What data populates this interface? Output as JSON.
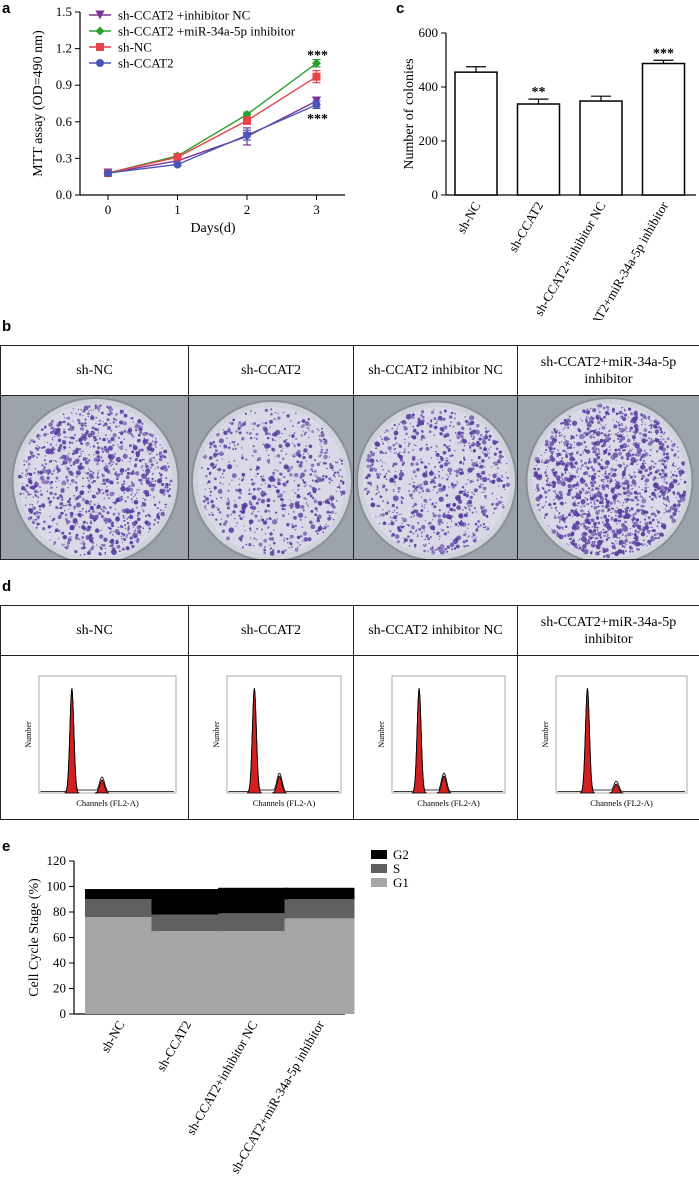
{
  "panel_letters": {
    "a": "a",
    "b": "b",
    "c": "c",
    "d": "d",
    "e": "e"
  },
  "colors": {
    "inhibitor_nc": "#7b3294",
    "mir_inhibitor": "#2ca02c",
    "sh_nc": "#e8424a",
    "sh_ccat2": "#4a55b8",
    "stain": "#5a3ea0",
    "peak": "#d21f1f",
    "g1": "#a6a6a6",
    "s": "#606060",
    "g2": "#000000"
  },
  "panel_b": {
    "headers": [
      "sh-NC",
      "sh-CCAT2",
      "sh-CCAT2 inhibitor NC",
      "sh-CCAT2+miR-34a-5p inhibitor"
    ]
  },
  "panel_d": {
    "headers": [
      "sh-NC",
      "sh-CCAT2",
      "sh-CCAT2 inhibitor NC",
      "sh-CCAT2+miR-34a-5p inhibitor"
    ],
    "xlabel": "Channels (FL2-A)",
    "ylabel": "Number"
  },
  "chart_data": [
    {
      "id": "a",
      "type": "line",
      "x": [
        0,
        1,
        2,
        3
      ],
      "xticks": [
        "0",
        "1",
        "2",
        "3"
      ],
      "yticks": [
        "0.0",
        "0.3",
        "0.6",
        "0.9",
        "1.2",
        "1.5"
      ],
      "xlabel": "Days(d)",
      "ylabel": "MTT assay (OD=490 nm)",
      "ylim": [
        0,
        1.5
      ],
      "legend_position": "top-left",
      "series": [
        {
          "name": "sh-CCAT2 +inhibitor NC",
          "marker": "triangle-down",
          "values": [
            0.18,
            0.28,
            0.48,
            0.77
          ],
          "errors": [
            0.01,
            0.02,
            0.07,
            0.03
          ]
        },
        {
          "name": "sh-CCAT2 +miR-34a-5p inhibitor",
          "marker": "diamond",
          "values": [
            0.18,
            0.32,
            0.66,
            1.08
          ],
          "errors": [
            0.01,
            0.02,
            0.02,
            0.03
          ]
        },
        {
          "name": "sh-NC",
          "marker": "square",
          "values": [
            0.18,
            0.31,
            0.61,
            0.97
          ],
          "errors": [
            0.01,
            0.02,
            0.03,
            0.05
          ]
        },
        {
          "name": "sh-CCAT2",
          "marker": "circle",
          "values": [
            0.18,
            0.25,
            0.49,
            0.74
          ],
          "errors": [
            0.01,
            0.01,
            0.04,
            0.03
          ]
        }
      ],
      "annotations": [
        {
          "text": "***",
          "x": 3,
          "y": 1.15
        },
        {
          "text": "***",
          "x": 3,
          "y": 0.63
        }
      ]
    },
    {
      "id": "c",
      "type": "bar",
      "categories": [
        "sh-NC",
        "sh-CCAT2",
        "sh-CCAT2+inhibitor NC",
        "sh-CCAT2+miR-34a-5p inhibitor"
      ],
      "values": [
        455,
        337,
        348,
        487
      ],
      "errors": [
        20,
        18,
        18,
        12
      ],
      "significance": [
        "",
        "**",
        "",
        "***"
      ],
      "ylabel": "Number of colonies",
      "yticks": [
        "0",
        "200",
        "400",
        "600"
      ],
      "ylim": [
        0,
        600
      ]
    },
    {
      "id": "e",
      "type": "bar",
      "stacked": true,
      "categories": [
        "sh-NC",
        "sh-CCAT2",
        "sh-CCAT2+inhibitor NC",
        "sh-CCAT2+miR-34a-5p inhibitor"
      ],
      "series": [
        {
          "name": "G1",
          "values": [
            76,
            65,
            65,
            75
          ]
        },
        {
          "name": "S",
          "values": [
            14,
            13,
            14,
            15
          ]
        },
        {
          "name": "G2",
          "values": [
            8,
            20,
            20,
            9
          ]
        }
      ],
      "legend_order": [
        "G2",
        "S",
        "G1"
      ],
      "ylabel": "Cell Cycle Stage (%)",
      "yticks": [
        "0",
        "20",
        "40",
        "60",
        "80",
        "100",
        "120"
      ],
      "ylim": [
        0,
        120
      ],
      "legend_position": "top-right"
    }
  ]
}
